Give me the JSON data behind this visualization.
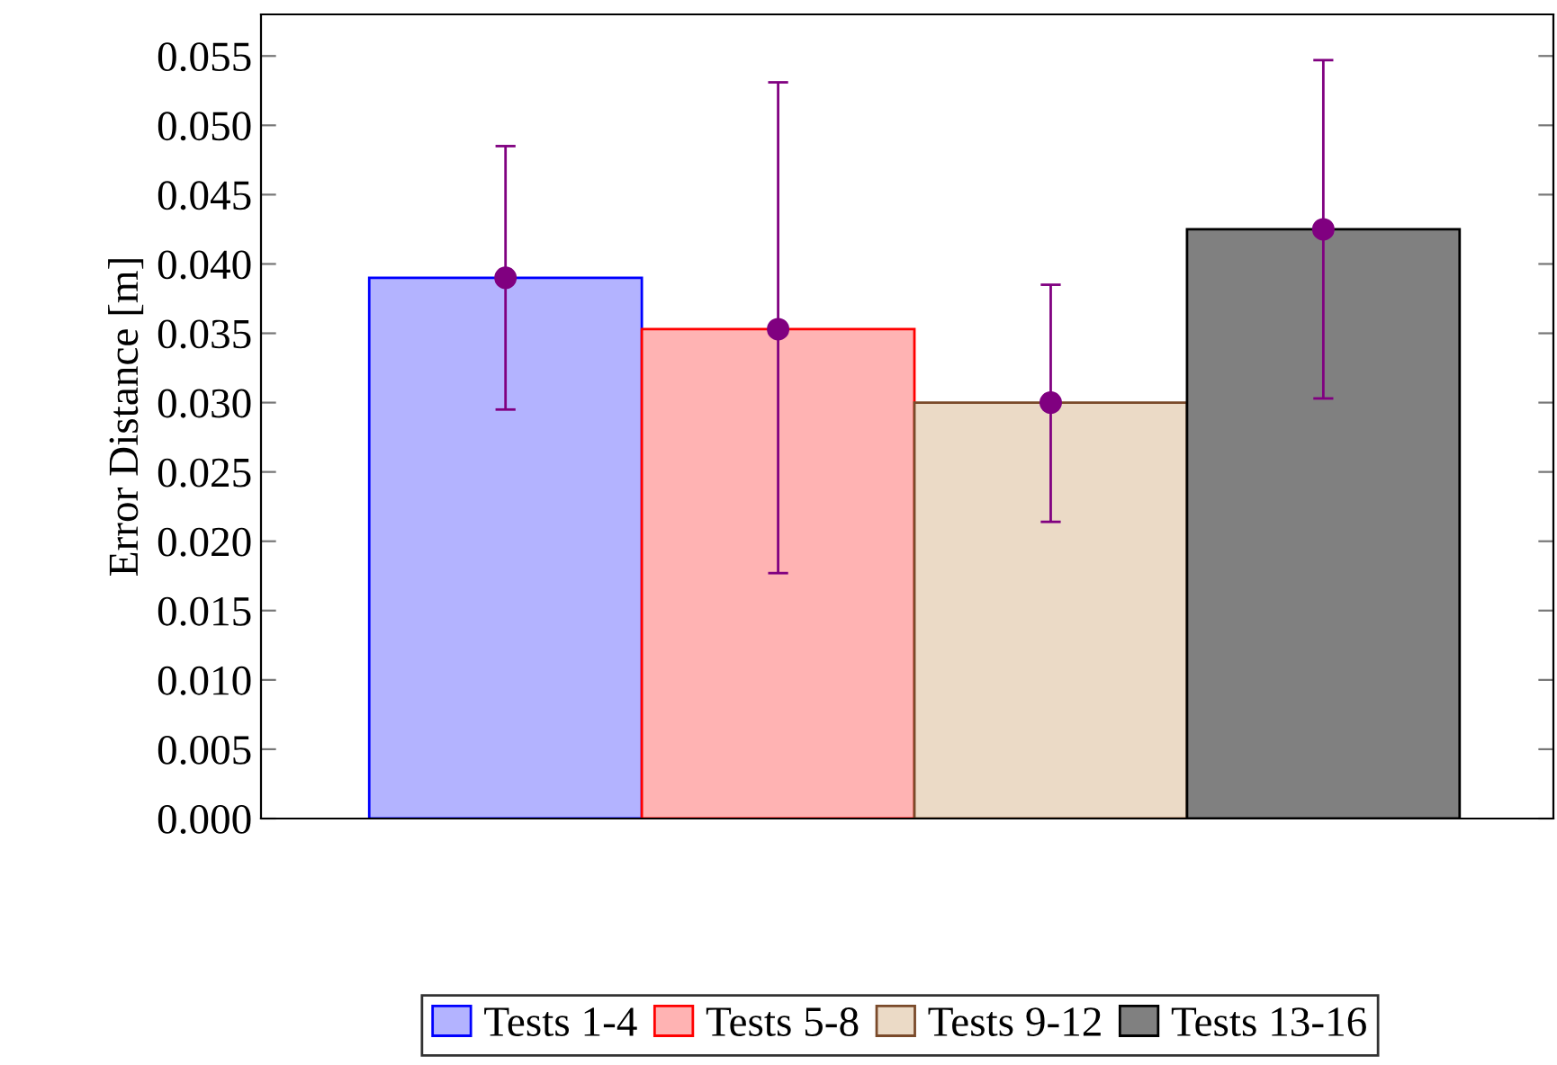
{
  "chart_data": {
    "type": "bar",
    "ylabel": "Error Distance [m]",
    "categories": [
      null,
      null,
      null,
      null
    ],
    "series": [
      {
        "name": "Tests 1-4",
        "color": "#b3b3ff",
        "values": [
          0.039,
          null,
          null,
          null
        ]
      },
      {
        "name": "Tests 5-8",
        "color": "#ffb3b3",
        "values": [
          null,
          0.0353,
          null,
          null
        ]
      },
      {
        "name": "Tests 9-12",
        "color": "#ebdac6",
        "values": [
          null,
          null,
          0.03,
          null
        ]
      },
      {
        "name": "Tests 13-16",
        "color": "#808080",
        "values": [
          null,
          null,
          null,
          0.0425
        ]
      },
      {
        "type": "scatter",
        "color": "#800080",
        "marker": "circle",
        "values": [
          0.039,
          0.0353,
          0.03,
          0.0425
        ],
        "errors": [
          [
            0.0295,
            0.0485
          ],
          [
            0.0177,
            0.0531
          ],
          [
            0.0214,
            0.0385
          ],
          [
            0.0303,
            0.0547
          ]
        ]
      }
    ],
    "ylim": [
      0,
      0.058
    ],
    "yticks": [
      {
        "value": 0,
        "label": "0.000"
      },
      {
        "value": 0.005,
        "label": "0.005"
      },
      {
        "value": 0.01,
        "label": "0.010"
      },
      {
        "value": 0.015,
        "label": "0.015"
      },
      {
        "value": 0.02,
        "label": "0.020"
      },
      {
        "value": 0.025,
        "label": "0.025"
      },
      {
        "value": 0.03,
        "label": "0.030"
      },
      {
        "value": 0.035,
        "label": "0.035"
      },
      {
        "value": 0.04,
        "label": "0.040"
      },
      {
        "value": 0.045,
        "label": "0.045"
      },
      {
        "value": 0.05,
        "label": "0.050"
      },
      {
        "value": 0.055,
        "label": "0.055"
      }
    ],
    "legend": "bottom"
  }
}
